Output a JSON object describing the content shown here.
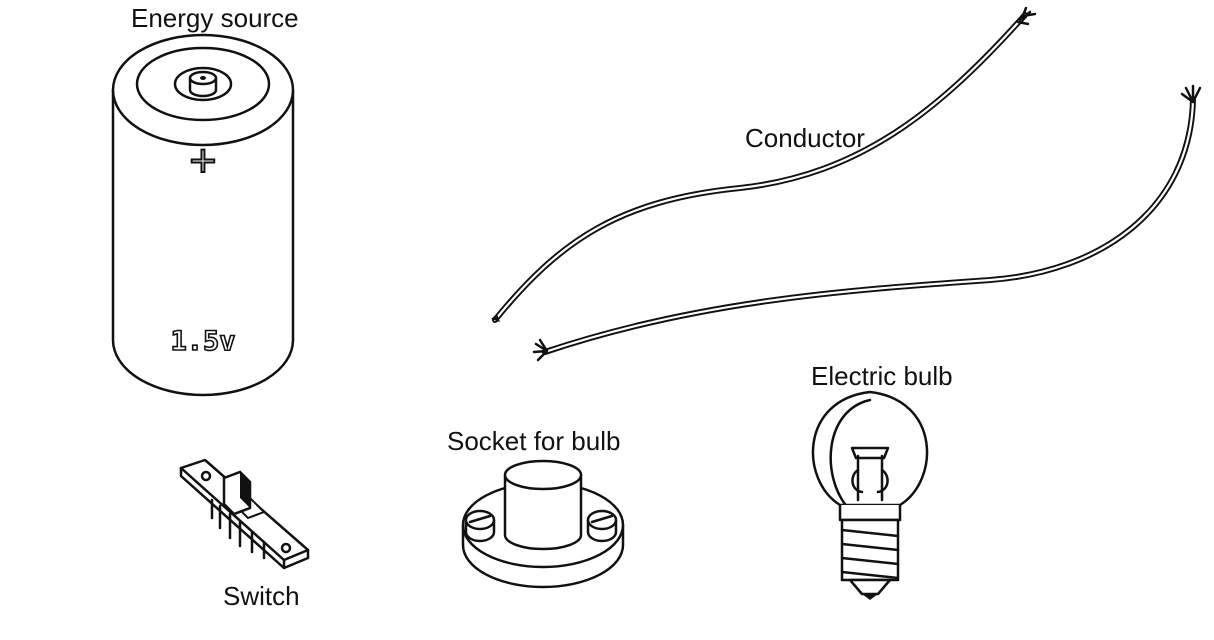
{
  "labels": {
    "battery": "Energy source",
    "battery_voltage": "1.5v",
    "battery_plus": "+",
    "wires": "Conductor",
    "bulb": "Electric bulb",
    "socket": "Socket for bulb",
    "switch": "Switch"
  },
  "colors": {
    "ink": "#111111",
    "background": "#ffffff"
  }
}
